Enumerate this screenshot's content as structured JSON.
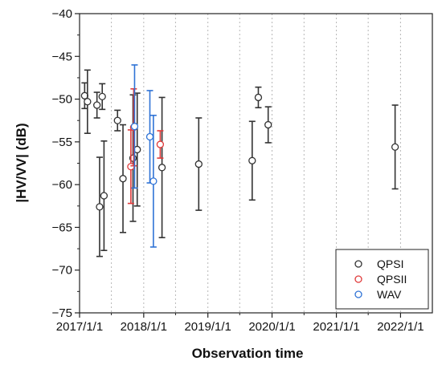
{
  "chart_data": {
    "type": "scatter",
    "xlabel": "Observation time",
    "ylabel": "|HV/VV| (dB)",
    "xlim": [
      "2017-01-01",
      "2022-07-01"
    ],
    "ylim": [
      -75,
      -40
    ],
    "x_ticks": [
      "2017/1/1",
      "2018/1/1",
      "2019/1/1",
      "2020/1/1",
      "2021/1/1",
      "2022/1/1"
    ],
    "y_ticks": [
      "-40",
      "-45",
      "-50",
      "-55",
      "-60",
      "-65",
      "-70",
      "-75"
    ],
    "grid": "vertical-dotted",
    "legend_position": "bottom-right",
    "series": [
      {
        "name": "QPSI",
        "color": "#333333",
        "points": [
          {
            "x": "2017-01-30",
            "y": -49.6,
            "err": 1.5
          },
          {
            "x": "2017-02-15",
            "y": -50.3,
            "err": 3.7
          },
          {
            "x": "2017-04-10",
            "y": -50.7,
            "err": 1.5
          },
          {
            "x": "2017-04-25",
            "y": -62.6,
            "err": 5.8
          },
          {
            "x": "2017-05-10",
            "y": -49.7,
            "err": 1.5
          },
          {
            "x": "2017-05-20",
            "y": -61.3,
            "err": 6.4
          },
          {
            "x": "2017-08-05",
            "y": -52.5,
            "err": 1.2
          },
          {
            "x": "2017-09-05",
            "y": -59.3,
            "err": 6.3
          },
          {
            "x": "2017-11-01",
            "y": -56.9,
            "err": 7.4
          },
          {
            "x": "2017-11-25",
            "y": -55.9,
            "err": 6.6
          },
          {
            "x": "2018-04-15",
            "y": -58.0,
            "err": 8.2
          },
          {
            "x": "2018-11-10",
            "y": -57.6,
            "err": 5.4
          },
          {
            "x": "2019-09-10",
            "y": -57.2,
            "err": 4.6
          },
          {
            "x": "2019-10-15",
            "y": -49.8,
            "err": 1.2
          },
          {
            "x": "2019-12-10",
            "y": -53.0,
            "err": 2.1
          },
          {
            "x": "2021-12-01",
            "y": -55.6,
            "err": 4.9
          }
        ]
      },
      {
        "name": "QPSII",
        "color": "#e03b3b",
        "points": [
          {
            "x": "2017-10-20",
            "y": -57.9,
            "err": 4.3
          },
          {
            "x": "2017-11-05",
            "y": -53.3,
            "err": 4.5
          },
          {
            "x": "2018-04-05",
            "y": -55.3,
            "err": 1.6
          }
        ]
      },
      {
        "name": "WAV",
        "color": "#2f73d6",
        "points": [
          {
            "x": "2017-11-10",
            "y": -53.2,
            "err": 7.2
          },
          {
            "x": "2018-02-05",
            "y": -54.4,
            "err": 5.4
          },
          {
            "x": "2018-02-25",
            "y": -59.6,
            "err": 7.7
          }
        ]
      }
    ]
  }
}
